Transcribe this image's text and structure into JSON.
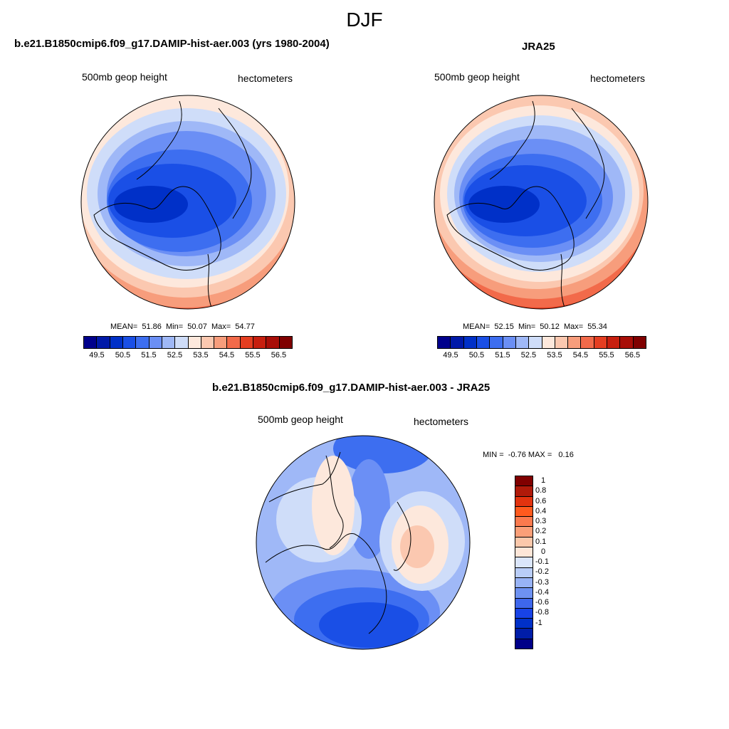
{
  "title": "DJF",
  "panels": {
    "model": {
      "title": "b.e21.B1850cmip6.f09_g17.DAMIP-hist-aer.003 (yrs 1980-2004)",
      "left_label": "500mb geop height",
      "right_label": "hectometers",
      "stats": {
        "mean_label": "MEAN=",
        "mean": "51.86",
        "min_label": "Min=",
        "min": "50.07",
        "max_label": "Max=",
        "max": "54.77"
      }
    },
    "obs": {
      "title": "JRA25",
      "left_label": "500mb geop height",
      "right_label": "hectometers",
      "stats": {
        "mean_label": "MEAN=",
        "mean": "52.15",
        "min_label": "Min=",
        "min": "50.12",
        "max_label": "Max=",
        "max": "55.34"
      }
    },
    "diff": {
      "title": "b.e21.B1850cmip6.f09_g17.DAMIP-hist-aer.003 - JRA25",
      "left_label": "500mb geop height",
      "right_label": "hectometers",
      "stats": {
        "min_label": "MIN =",
        "min": "-0.76",
        "max_label": "MAX =",
        "max": "0.16"
      }
    }
  },
  "colorbar_abs": {
    "colors": [
      "#00008c",
      "#0019a8",
      "#0030c8",
      "#1a4fe6",
      "#3d6ef0",
      "#6b8ff5",
      "#9fb8f7",
      "#cfddf9",
      "#fde8dc",
      "#fbc8b0",
      "#f79d7c",
      "#f26a4a",
      "#e53e21",
      "#c71f0f",
      "#a80e08",
      "#800000"
    ],
    "labels": [
      "49.5",
      "50.5",
      "51.5",
      "52.5",
      "53.5",
      "54.5",
      "55.5",
      "56.5"
    ]
  },
  "colorbar_diff": {
    "colors": [
      "#800000",
      "#b01a0a",
      "#e2330f",
      "#ff5a1e",
      "#fb7a4e",
      "#fb9f78",
      "#fbc8ab",
      "#fde6d8",
      "#dbe6fb",
      "#b9cdf8",
      "#98b3f6",
      "#6e92f2",
      "#3e67ec",
      "#1843e6",
      "#0030c8",
      "#001da8",
      "#000088"
    ],
    "labels": [
      "1",
      "0.8",
      "0.6",
      "0.4",
      "0.3",
      "0.2",
      "0.1",
      "0",
      "-0.1",
      "-0.2",
      "-0.3",
      "-0.4",
      "-0.6",
      "-0.8",
      "-1"
    ]
  },
  "map_colors": {
    "deep": "#0030c8",
    "mid": "#1a4fe6",
    "med": "#3d6ef0",
    "light": "#6b8ff5",
    "paler": "#9fb8f7",
    "palest": "#cfddf9",
    "warm1": "#fde8dc",
    "warm2": "#fbc8b0",
    "warm3": "#f79d7c",
    "warm4": "#f26a4a",
    "warm5": "#e53e21"
  }
}
